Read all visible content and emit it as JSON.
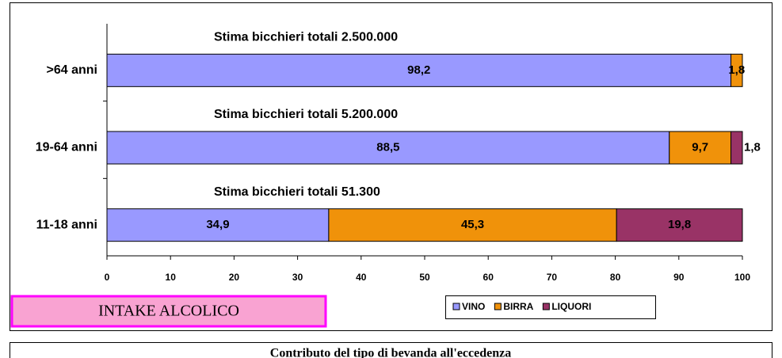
{
  "chart_data": {
    "type": "stacked-barh",
    "categories": [
      ">64 anni",
      "19-64 anni",
      "11-18 anni"
    ],
    "series": [
      {
        "name": "VINO",
        "color": "#9999ff",
        "values": [
          98.2,
          88.5,
          34.9
        ],
        "value_labels": [
          "98,2",
          "88,5",
          "34,9"
        ]
      },
      {
        "name": "BIRRA",
        "color": "#f0920a",
        "values": [
          1.8,
          9.7,
          45.3
        ],
        "value_labels": [
          "1,8",
          "9,7",
          "45,3"
        ]
      },
      {
        "name": "LIQUORI",
        "color": "#993366",
        "values": [
          null,
          1.8,
          19.8
        ],
        "value_labels": [
          null,
          "1,8",
          "19,8"
        ]
      }
    ],
    "annotations": [
      "Stima bicchieri totali 2.500.000",
      "Stima bicchieri totali 5.200.000",
      "Stima bicchieri totali 51.300"
    ],
    "xlim": [
      0,
      100
    ],
    "xticks": [
      0,
      10,
      20,
      30,
      40,
      50,
      60,
      70,
      80,
      90,
      100
    ],
    "grid": false,
    "legend": "bottom",
    "label_box": "INTAKE ALCOLICO",
    "caption": "Contributo del tipo di bevanda all'eccedenza"
  }
}
